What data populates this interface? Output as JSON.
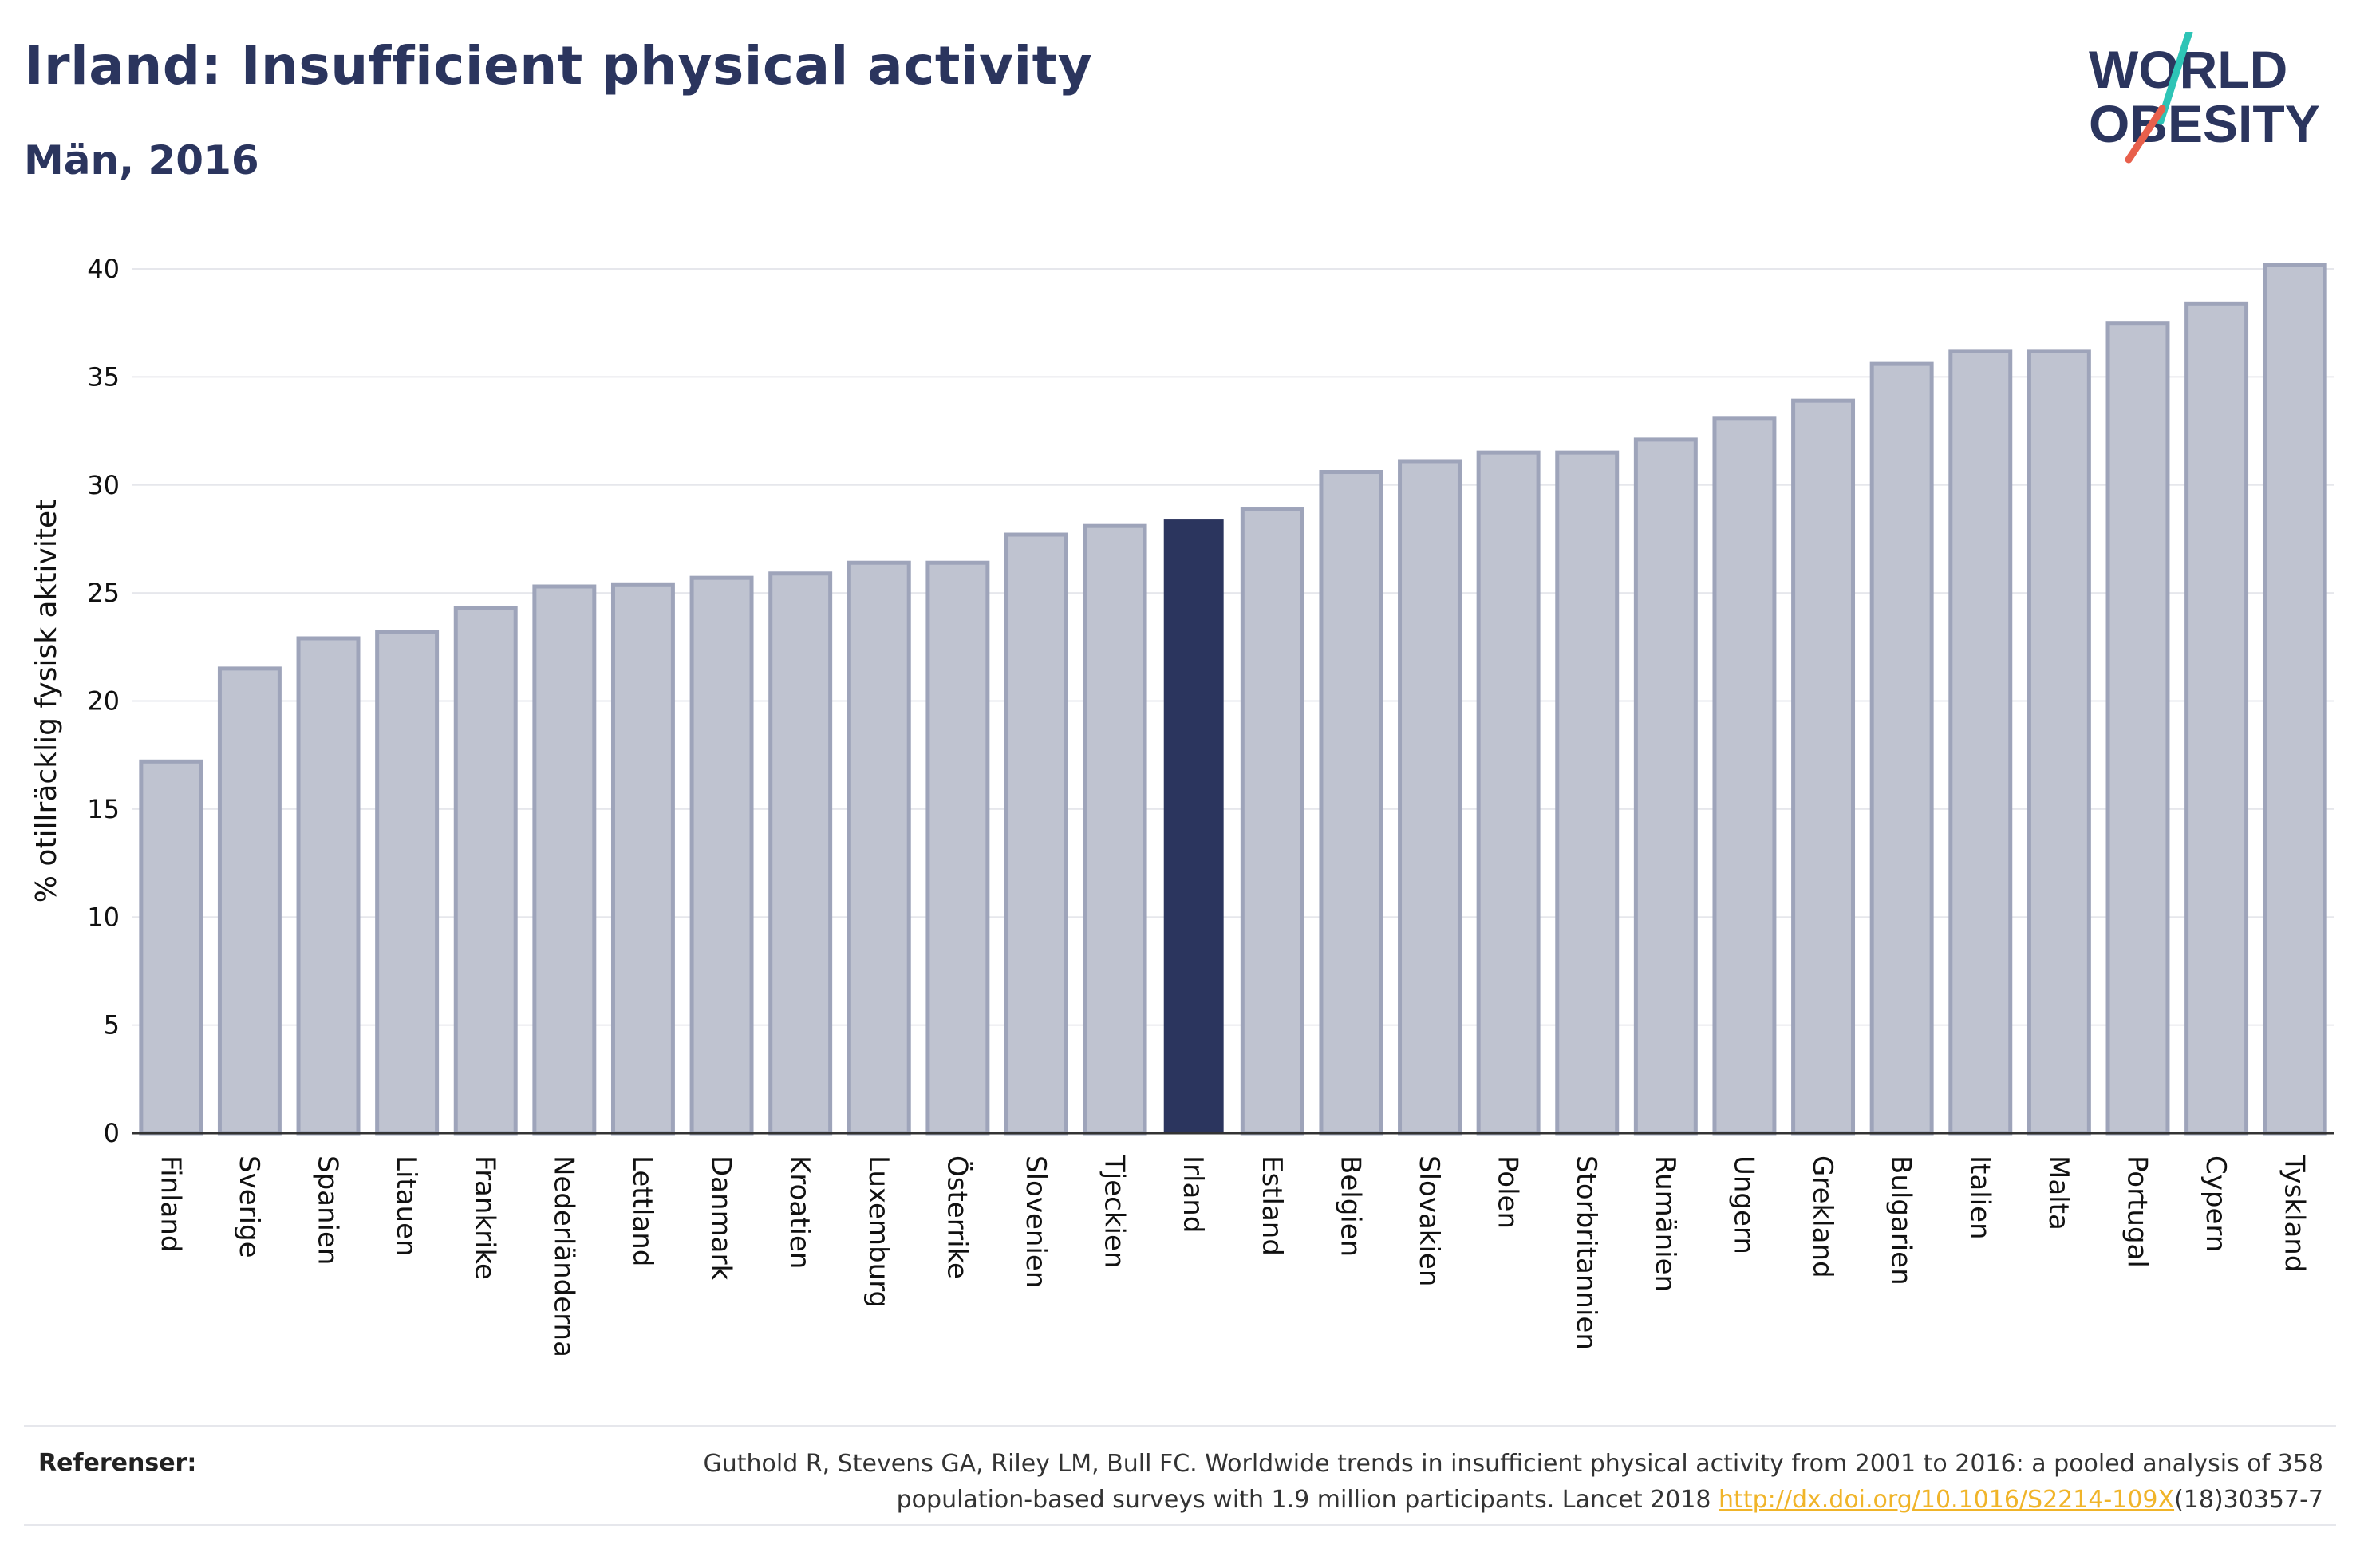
{
  "title": "Irland: Insufficient physical activity",
  "subtitle": "Män, 2016",
  "logo": {
    "line1": "WORLD",
    "line2": "OBESITY"
  },
  "colors": {
    "highlight": "#2b355e",
    "bar": "#bfc3d0",
    "bar_stroke": "#9ea4ba",
    "grid": "#e6e7ec",
    "logo_teal": "#2ec4b6",
    "logo_coral": "#e8604c",
    "link": "#f0b429"
  },
  "chart_data": {
    "type": "bar",
    "title": "",
    "ylabel": "% otillräcklig fysisk aktivitet",
    "xlabel": "",
    "ylim": [
      0,
      42
    ],
    "yticks": [
      0,
      5,
      10,
      15,
      20,
      25,
      30,
      35,
      40
    ],
    "grid": true,
    "highlight": "Irland",
    "categories": [
      "Finland",
      "Sverige",
      "Spanien",
      "Litauen",
      "Frankrike",
      "Nederländerna",
      "Lettland",
      "Danmark",
      "Kroatien",
      "Luxemburg",
      "Österrike",
      "Slovenien",
      "Tjeckien",
      "Irland",
      "Estland",
      "Belgien",
      "Slovakien",
      "Polen",
      "Storbritannien",
      "Rumänien",
      "Ungern",
      "Grekland",
      "Bulgarien",
      "Italien",
      "Malta",
      "Portugal",
      "Cypern",
      "Tyskland"
    ],
    "values": [
      17.2,
      21.5,
      22.9,
      23.2,
      24.3,
      25.3,
      25.4,
      25.7,
      25.9,
      26.4,
      26.4,
      27.7,
      28.1,
      28.4,
      28.9,
      30.6,
      31.1,
      31.5,
      31.5,
      32.1,
      33.1,
      33.9,
      35.6,
      36.2,
      36.2,
      37.5,
      38.4,
      40.2
    ]
  },
  "references": {
    "label": "Referenser:",
    "line1": "Guthold R, Stevens GA, Riley LM, Bull FC. Worldwide trends in insufficient physical activity from 2001 to 2016: a pooled analysis of 358",
    "line2_pre": "population-based surveys with 1.9 million participants. Lancet 2018 ",
    "link": "http://dx.doi.org/10.1016/S2214-109X",
    "line2_post": "(18)30357-7"
  }
}
